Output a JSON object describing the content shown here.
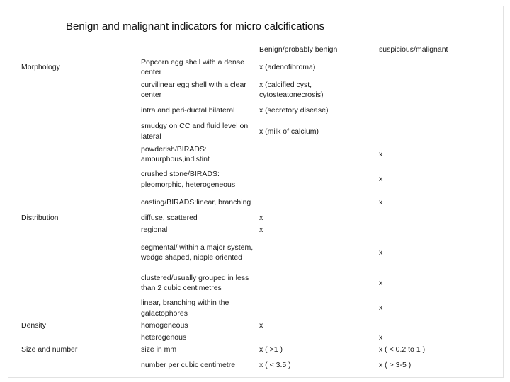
{
  "title": "Benign and malignant indicators for micro calcifications",
  "headers": {
    "benign": "Benign/probably benign",
    "malignant": "suspicious/malignant"
  },
  "categories": {
    "morphology": "Morphology",
    "distribution": "Distribution",
    "density": "Density",
    "size_number": "Size and number"
  },
  "rows": [
    {
      "l1": "Popcorn egg shell with a dense",
      "l2": "center",
      "benign": "x (adenofibroma)",
      "benign2": "",
      "malignant": "",
      "malignant2": ""
    },
    {
      "l1": "curvilinear egg shell with a clear",
      "l2": "center",
      "benign": "x  (calcified cyst,",
      "benign2": "cytosteatonecrosis)",
      "malignant": "",
      "malignant2": ""
    },
    {
      "l1": "intra and peri-ductal bilateral",
      "l2": "",
      "benign": "x (secretory disease)",
      "benign2": "",
      "malignant": "",
      "malignant2": ""
    },
    {
      "l1": "smudgy on CC and fluid level on",
      "l2": "lateral",
      "benign": "x (milk of calcium)",
      "benign2": "",
      "malignant": "",
      "malignant2": ""
    },
    {
      "l1": "powderish/BIRADS:",
      "l2": "amourphous,indistint",
      "benign": "",
      "benign2": "",
      "malignant": "x",
      "malignant2": ""
    },
    {
      "l1": "crushed stone/BIRADS:",
      "l2": "pleomorphic, heterogeneous",
      "benign": "",
      "benign2": "",
      "malignant": "x",
      "malignant2": ""
    },
    {
      "l1": "casting/BIRADS:linear, branching",
      "l2": "",
      "benign": "",
      "benign2": "",
      "malignant": "x",
      "malignant2": ""
    },
    {
      "l1": "diffuse, scattered",
      "l2": "regional",
      "benign": "x",
      "benign2": "x",
      "malignant": "",
      "malignant2": ""
    },
    {
      "l1": "segmental/ within a major system,",
      "l2": "wedge shaped, nipple oriented",
      "benign": "",
      "benign2": "",
      "malignant": "x",
      "malignant2": ""
    },
    {
      "l1": "clustered/usually grouped in less",
      "l2": "than 2 cubic centimetres",
      "benign": "",
      "benign2": "",
      "malignant": "x",
      "malignant2": ""
    },
    {
      "l1": "linear, branching within the",
      "l2": "galactophores",
      "benign": "",
      "benign2": "",
      "malignant": "x",
      "malignant2": ""
    },
    {
      "l1": "homogeneous",
      "l2": "",
      "benign": "x",
      "benign2": "",
      "malignant": "",
      "malignant2": ""
    },
    {
      "l1": "heterogenous",
      "l2": "",
      "benign": "",
      "benign2": "",
      "malignant": "x",
      "malignant2": ""
    },
    {
      "l1": "size in mm",
      "l2": "",
      "benign": "x ( >1 )",
      "benign2": "",
      "malignant": "x ( < 0.2 to 1 )",
      "malignant2": ""
    },
    {
      "l1": "number per cubic centimetre",
      "l2": "",
      "benign": "x ( < 3.5 )",
      "benign2": "",
      "malignant": "x ( > 3-5 )",
      "malignant2": ""
    }
  ]
}
